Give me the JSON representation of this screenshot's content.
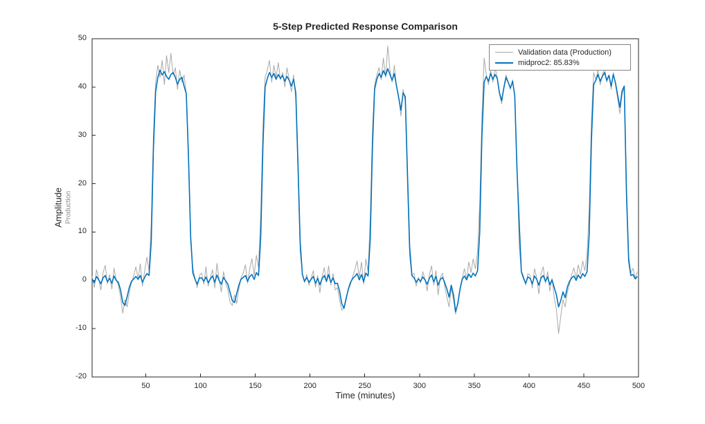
{
  "chart_data": {
    "type": "line",
    "title": "5-Step Predicted Response Comparison",
    "xlabel": "Time (minutes)",
    "ylabel": "Amplitude",
    "ylabel_sub": "Production",
    "xlim": [
      1,
      500
    ],
    "ylim": [
      -20,
      50
    ],
    "x_ticks": [
      50,
      100,
      150,
      200,
      250,
      300,
      350,
      400,
      450,
      500
    ],
    "y_ticks": [
      -20,
      -10,
      0,
      10,
      20,
      30,
      40,
      50
    ],
    "grid": false,
    "legend_position": "top-right-inside",
    "axis_color": "#262626",
    "x_start": 1,
    "x_step": 2,
    "series": [
      {
        "name": "Validation data (Production)",
        "color": "#a8a8a8",
        "line_width": 1,
        "values": [
          0.8,
          -1.5,
          2.2,
          0.4,
          -2.0,
          1.6,
          3.1,
          -0.7,
          1.2,
          -1.8,
          2.5,
          0.1,
          -1.0,
          -3.5,
          -6.8,
          -4.0,
          -5.5,
          -2.5,
          -0.5,
          1.0,
          2.8,
          0.3,
          3.4,
          -1.2,
          1.9,
          4.8,
          2.0,
          12,
          30,
          41,
          44.5,
          42,
          45.5,
          40.5,
          46.5,
          43,
          47,
          42.5,
          44,
          39.5,
          43.5,
          41,
          42.5,
          38.5,
          25,
          8,
          2.5,
          0.5,
          -1.5,
          1.0,
          1.5,
          -0.8,
          2.8,
          -1.2,
          0.6,
          2.2,
          -1.6,
          3.5,
          0.2,
          -2.4,
          1.8,
          -0.5,
          -2.0,
          -4.5,
          -5.2,
          -3.0,
          -4.8,
          -1.8,
          0.5,
          1.5,
          3.2,
          -0.6,
          2.4,
          4.5,
          1.0,
          5.2,
          2.6,
          14,
          32,
          42,
          43.5,
          45.5,
          41,
          44.5,
          42,
          45,
          41.5,
          43,
          40,
          44,
          41.5,
          39,
          42.5,
          37.5,
          22,
          6,
          1.5,
          -0.5,
          1.2,
          -1.0,
          0.4,
          2.0,
          -1.4,
          1.0,
          -2.6,
          0.8,
          2.6,
          -0.4,
          3.0,
          -1.0,
          1.4,
          -2.0,
          -1.5,
          -4.0,
          -6.2,
          -5.5,
          -3.5,
          -2.0,
          -0.8,
          0.8,
          2.2,
          4.0,
          0.6,
          3.8,
          -0.8,
          4.4,
          1.8,
          13,
          31,
          40.5,
          42.5,
          44,
          41.5,
          46,
          42,
          48.5,
          43.5,
          41,
          44.5,
          40,
          38,
          34,
          39.5,
          37,
          20,
          5,
          1.0,
          1.5,
          -1.2,
          0.6,
          -0.6,
          1.8,
          0.2,
          -2.2,
          1.2,
          3.0,
          -1.0,
          2.0,
          -3.0,
          0.6,
          1.5,
          -1.2,
          -3.5,
          -5.5,
          -1.5,
          -4.0,
          -7.0,
          -4.5,
          -1.5,
          0.5,
          2.4,
          0.2,
          3.8,
          1.6,
          4.4,
          2.4,
          6.0,
          16,
          34,
          46,
          42.5,
          40.5,
          43.5,
          41,
          44,
          42,
          38.5,
          36.5,
          40,
          42.5,
          41,
          39.5,
          41.5,
          38,
          24,
          7,
          2.0,
          0.8,
          -1.0,
          1.4,
          1.0,
          -1.6,
          2.4,
          0.6,
          -2.8,
          1.4,
          2.8,
          -0.6,
          1.8,
          -2.2,
          0.4,
          -3.5,
          -6.0,
          -11.0,
          -7.5,
          -4.0,
          -5.5,
          -2.5,
          -0.8,
          1.2,
          2.6,
          0.4,
          3.2,
          1.2,
          4.0,
          2.0,
          5.5,
          15,
          33,
          43,
          41.5,
          43.5,
          40.5,
          42.5,
          44,
          41,
          42.5,
          39.5,
          43,
          40.5,
          37.5,
          34.5,
          38.5,
          40,
          20,
          5,
          1.5,
          2.5,
          0.5,
          1.8
        ]
      },
      {
        "name": "midproc2: 85.83%",
        "color": "#0072bd",
        "line_width": 1.6,
        "values": [
          0.3,
          -0.5,
          0.8,
          0.1,
          -0.7,
          0.5,
          1.0,
          -0.3,
          0.4,
          -0.6,
          0.9,
          0.0,
          -0.4,
          -2.0,
          -4.6,
          -5.2,
          -3.4,
          -1.4,
          -0.2,
          0.3,
          0.8,
          0.2,
          1.0,
          -0.4,
          0.6,
          1.4,
          1.0,
          8,
          27,
          39,
          42,
          43.5,
          42.5,
          43.2,
          42.2,
          41.6,
          42.6,
          43,
          42,
          40.6,
          41.6,
          42,
          40.2,
          38.6,
          26,
          9,
          1.5,
          0.2,
          -0.8,
          0.5,
          0.5,
          -0.2,
          0.7,
          -0.5,
          0.3,
          0.9,
          -0.4,
          1.1,
          0.0,
          -0.8,
          0.6,
          -0.1,
          -0.8,
          -2.5,
          -4.2,
          -4.6,
          -2.8,
          -1.0,
          0.2,
          0.6,
          1.0,
          -0.2,
          0.8,
          1.2,
          0.2,
          1.6,
          1.0,
          9,
          28,
          40,
          41.8,
          43,
          42,
          42.8,
          41.6,
          42.6,
          41.8,
          42.4,
          41.2,
          42.2,
          41.4,
          40.2,
          41.6,
          38.8,
          24,
          8,
          1.2,
          -0.2,
          0.6,
          -0.4,
          0.2,
          0.8,
          -0.6,
          0.4,
          -0.9,
          0.3,
          1.0,
          -0.2,
          1.2,
          -0.4,
          0.5,
          -0.7,
          -0.6,
          -2.2,
          -4.8,
          -5.8,
          -3.8,
          -1.8,
          -0.4,
          0.4,
          0.8,
          1.4,
          0.1,
          1.2,
          -0.3,
          1.5,
          0.9,
          8.5,
          27.5,
          39.5,
          41.6,
          42.8,
          42,
          43.4,
          42.4,
          43.8,
          42.6,
          41.4,
          42.8,
          40.2,
          37.8,
          35.2,
          38.8,
          38,
          22,
          7,
          1.0,
          0.5,
          -0.4,
          0.3,
          -0.2,
          0.7,
          0.1,
          -0.8,
          0.4,
          1.1,
          -0.3,
          0.8,
          -1.0,
          0.2,
          0.6,
          -0.5,
          -1.8,
          -3.5,
          -1.0,
          -3.0,
          -6.5,
          -4.8,
          -1.8,
          0.2,
          0.9,
          0.1,
          1.3,
          0.6,
          1.5,
          0.9,
          2.0,
          10,
          30,
          41,
          42.2,
          41.2,
          42.8,
          41.6,
          42.6,
          41.8,
          38.8,
          37.2,
          39.8,
          42,
          41,
          39.8,
          41.2,
          38.2,
          23,
          12,
          1.8,
          0.4,
          -0.6,
          0.7,
          0.4,
          -0.7,
          0.9,
          0.2,
          -1.0,
          0.5,
          1.0,
          -0.2,
          0.7,
          -0.9,
          0.1,
          -1.5,
          -3.0,
          -5.5,
          -4.2,
          -2.4,
          -3.6,
          -1.4,
          -0.2,
          0.5,
          0.9,
          0.0,
          1.1,
          0.4,
          1.4,
          0.8,
          1.8,
          9.5,
          29,
          40.5,
          41.4,
          42.6,
          41.2,
          42.2,
          43,
          41.4,
          42.4,
          40.2,
          42.6,
          40.8,
          38.2,
          35.8,
          39.2,
          40.2,
          18,
          4,
          1.0,
          1.2,
          0.3,
          0.8
        ]
      }
    ]
  }
}
